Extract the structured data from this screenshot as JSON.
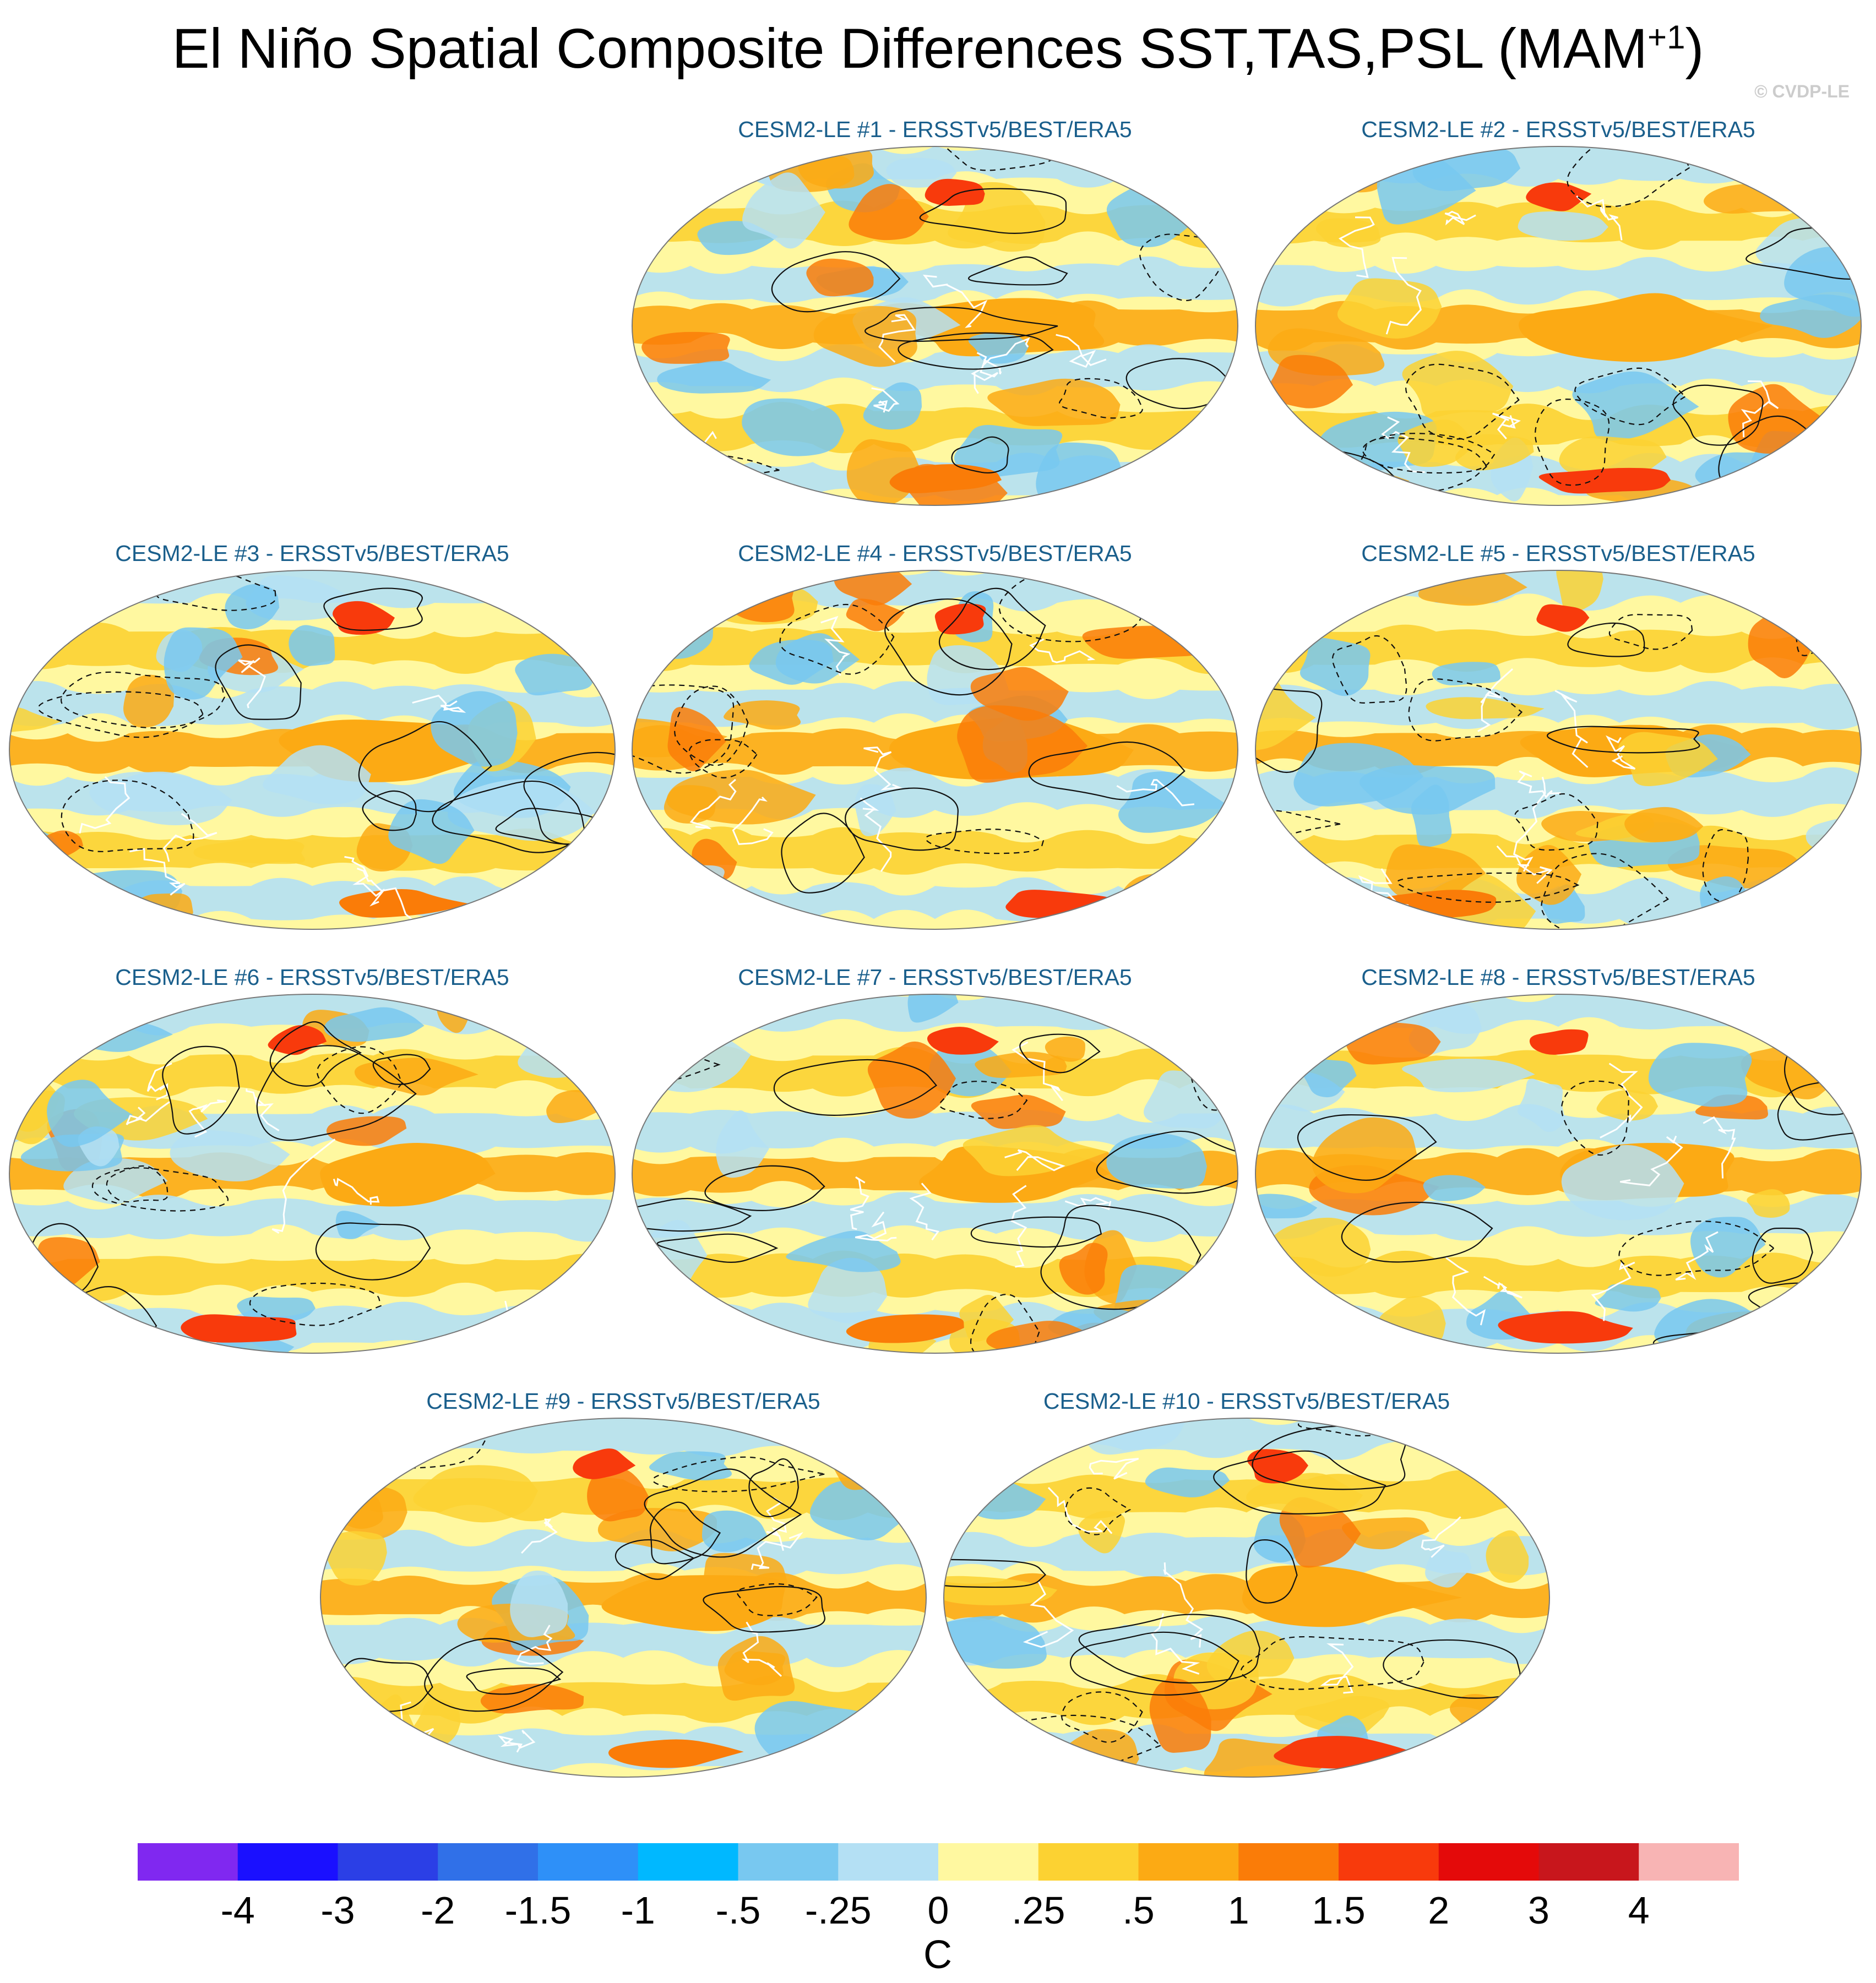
{
  "title_main": "El Niño Spatial Composite Differences SST,TAS,PSL (MAM",
  "title_sup": "+1",
  "title_end": ")",
  "copyright": "© CVDP-LE",
  "panels": [
    {
      "label": "CESM2-LE #1 - ERSSTv5/BEST/ERA5"
    },
    {
      "label": "CESM2-LE #2 - ERSSTv5/BEST/ERA5"
    },
    {
      "label": "CESM2-LE #3 - ERSSTv5/BEST/ERA5"
    },
    {
      "label": "CESM2-LE #4 - ERSSTv5/BEST/ERA5"
    },
    {
      "label": "CESM2-LE #5 - ERSSTv5/BEST/ERA5"
    },
    {
      "label": "CESM2-LE #6 - ERSSTv5/BEST/ERA5"
    },
    {
      "label": "CESM2-LE #7 - ERSSTv5/BEST/ERA5"
    },
    {
      "label": "CESM2-LE #8 - ERSSTv5/BEST/ERA5"
    },
    {
      "label": "CESM2-LE #9 - ERSSTv5/BEST/ERA5"
    },
    {
      "label": "CESM2-LE #10 - ERSSTv5/BEST/ERA5"
    }
  ],
  "colorbar": {
    "colors": [
      "#8028f0",
      "#1a10ff",
      "#2b3fe6",
      "#3070e8",
      "#2e90f8",
      "#00b8ff",
      "#78c8f0",
      "#b4e0f4",
      "#fff8a0",
      "#fcd232",
      "#fcaa14",
      "#fa7c08",
      "#f83a0c",
      "#e40a0a",
      "#c8161c",
      "#f8b4b4"
    ],
    "labels": [
      "-4",
      "-3",
      "-2",
      "-1.5",
      "-1",
      "-.5",
      "-.25",
      "0",
      ".25",
      ".5",
      "1",
      "1.5",
      "2",
      "3",
      "4"
    ],
    "units": "C"
  },
  "palette": {
    "ocean_light_blue": "#b4e0f4",
    "pale_yellow": "#fff8a0",
    "yellow": "#fcd232",
    "orange": "#fcaa14",
    "blue": "#78c8f0",
    "dark_orange": "#fa7c08",
    "red": "#f83a0c"
  }
}
